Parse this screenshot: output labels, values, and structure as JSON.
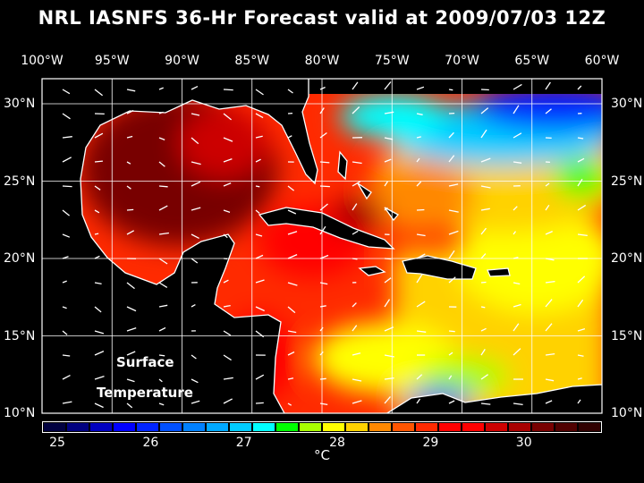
{
  "title": "NRL IASNFS  36-Hr Forecast valid at 2009/07/03 12Z",
  "lon_labels": [
    "100°W",
    "95°W",
    "90°W",
    "85°W",
    "80°W",
    "75°W",
    "70°W",
    "65°W",
    "60°W"
  ],
  "lat_labels": [
    "30°N",
    "25°N",
    "20°N",
    "15°N",
    "10°N"
  ],
  "annotation": {
    "line1": "Surface",
    "line2": "Temperature"
  },
  "colorbar": {
    "unit": "°C",
    "min": 25,
    "max": 30.75,
    "step": 0.25,
    "tick_labels": [
      "25",
      "26",
      "27",
      "28",
      "29",
      "30"
    ],
    "colors": [
      "#000040",
      "#000080",
      "#0000c0",
      "#0000ff",
      "#0024ff",
      "#0050ff",
      "#0080ff",
      "#00a8ff",
      "#00ccff",
      "#00ffff",
      "#00ff00",
      "#a8ff00",
      "#ffff00",
      "#ffd200",
      "#ff8800",
      "#ff5500",
      "#ff2a00",
      "#ff0000",
      "#ff0000",
      "#cc0000",
      "#a80000",
      "#780000",
      "#500000",
      "#300000"
    ]
  }
}
